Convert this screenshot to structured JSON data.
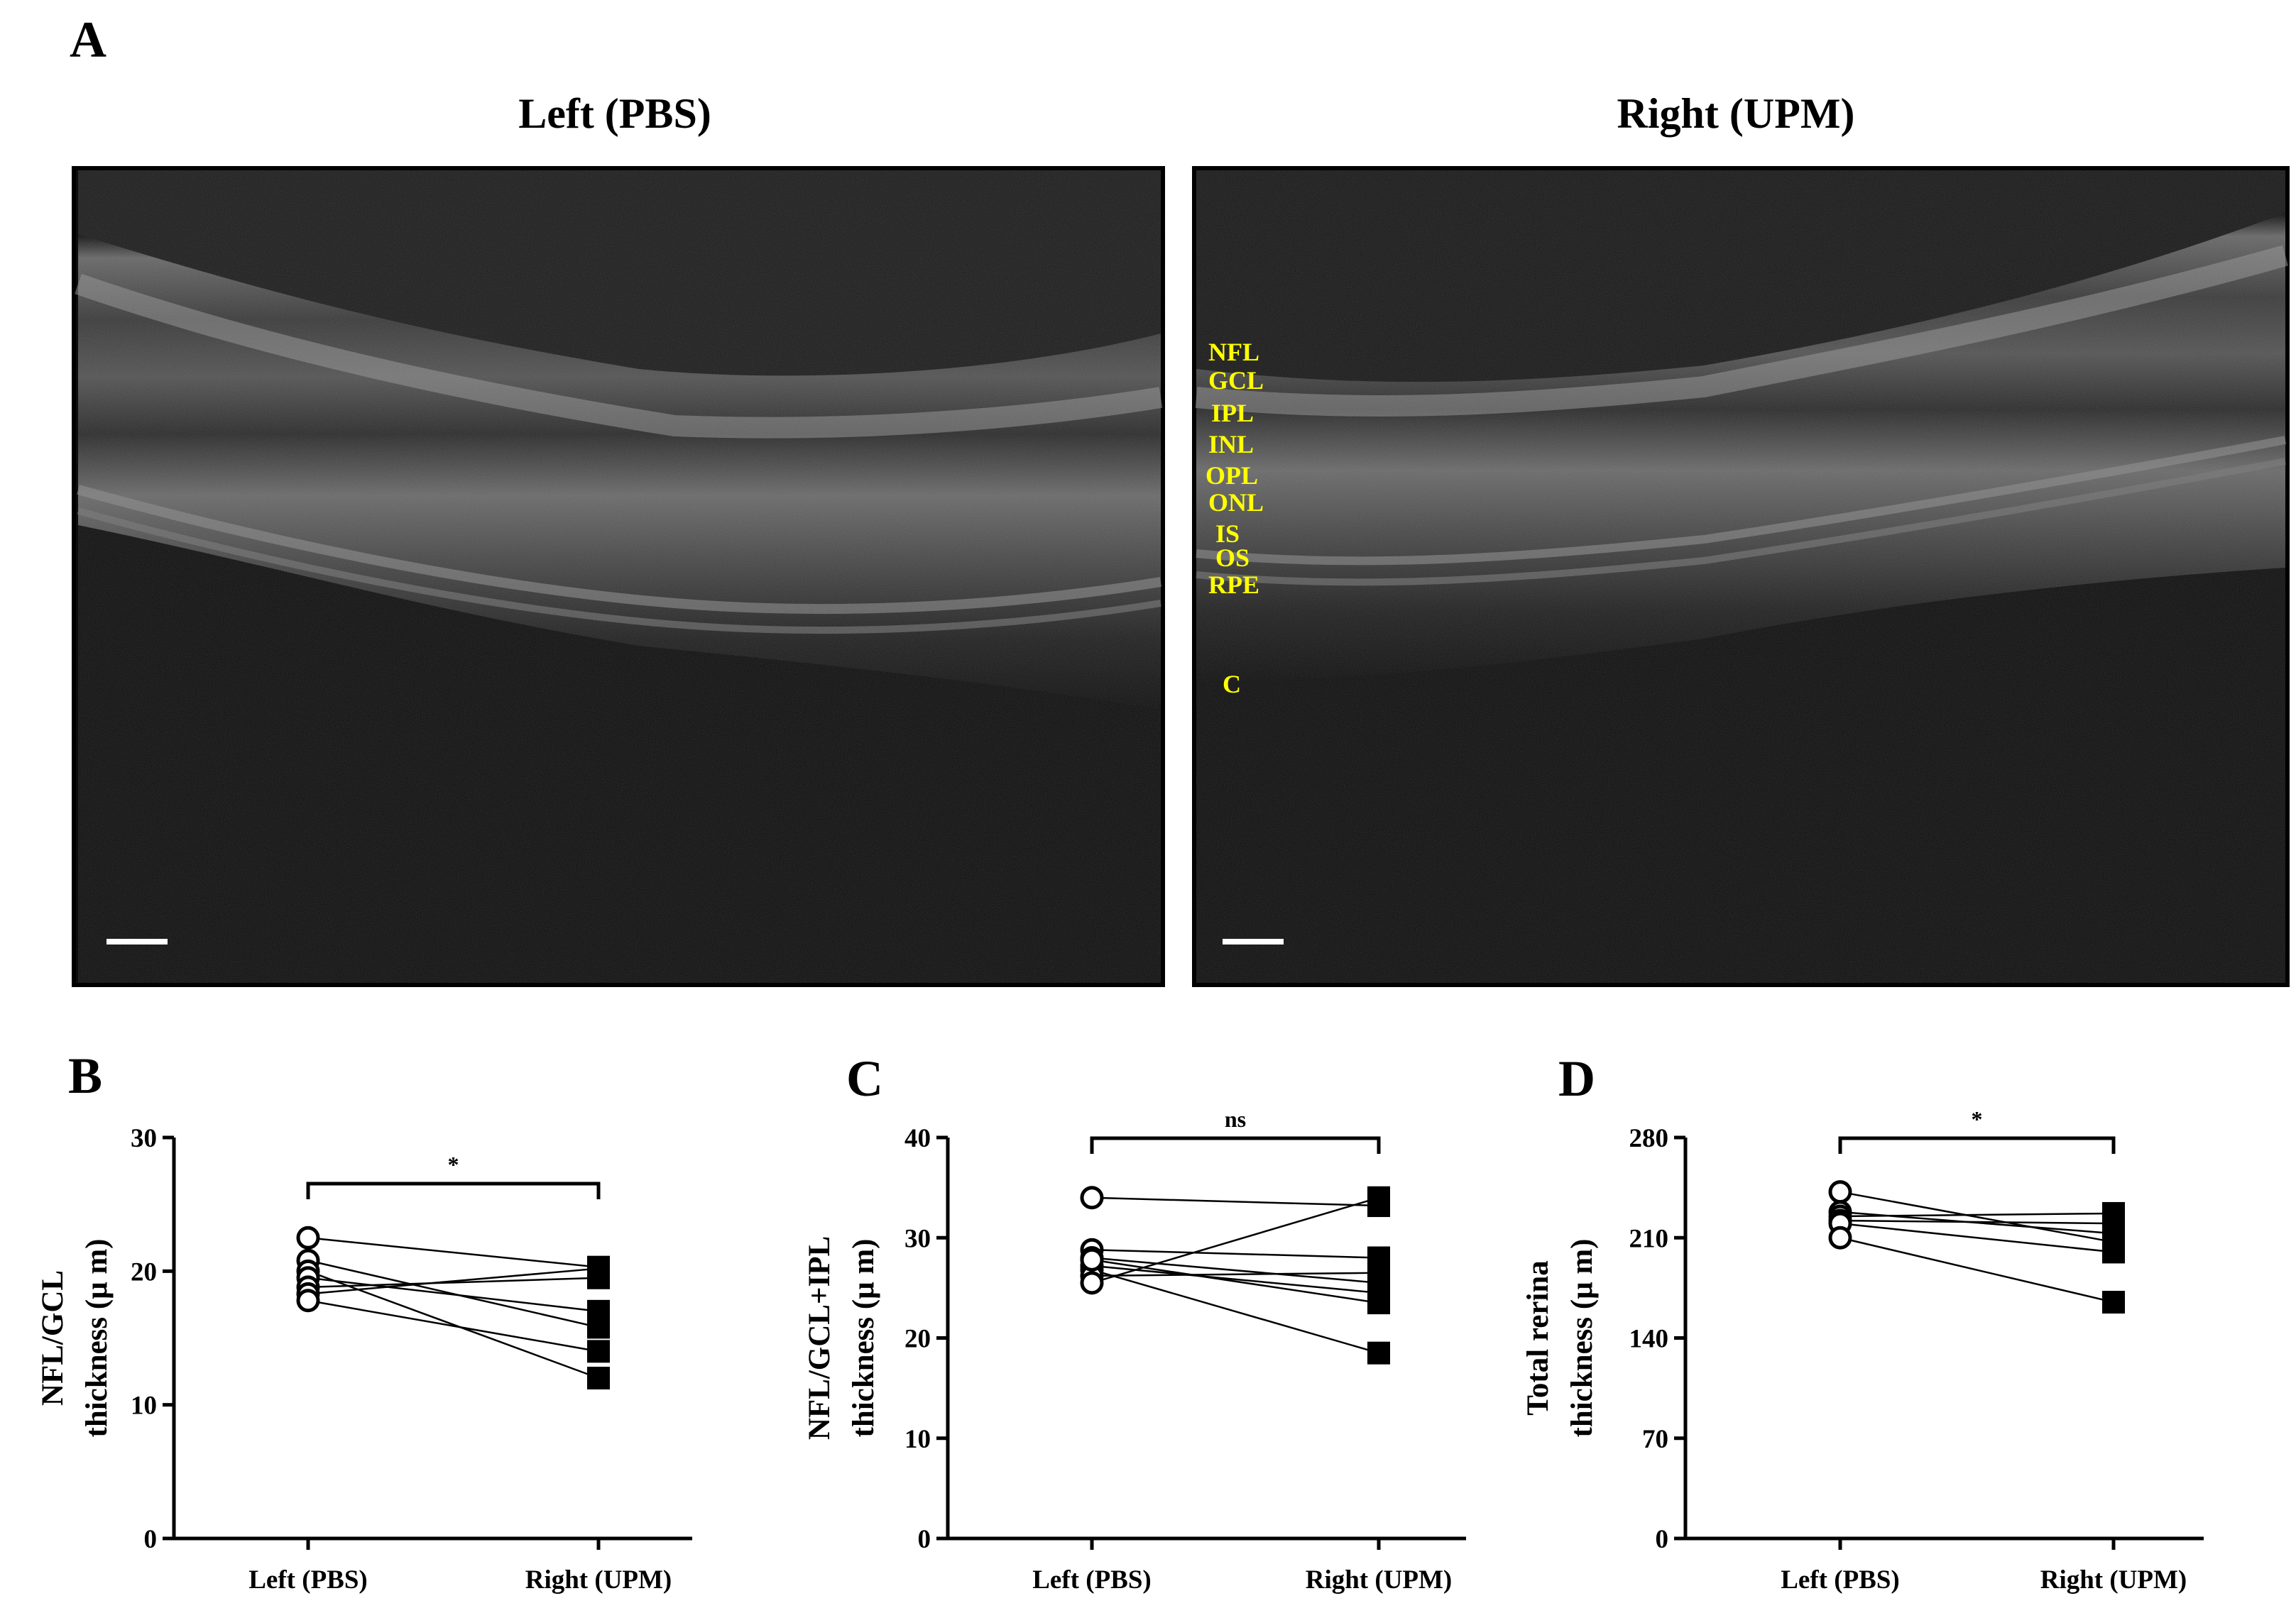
{
  "panels": {
    "A": {
      "letter": "A",
      "left_title": "Left (PBS)",
      "right_title": "Right (UPM)",
      "layer_labels": [
        "NFL",
        "GCL",
        "IPL",
        "INL",
        "OPL",
        "ONL",
        "IS",
        "OS",
        "RPE",
        "C"
      ],
      "label_color": "#ffff00"
    },
    "B": {
      "letter": "B"
    },
    "C": {
      "letter": "C"
    },
    "D": {
      "letter": "D"
    }
  },
  "chart_data": [
    {
      "type": "line",
      "panel": "B",
      "categories": [
        "Left (PBS)",
        "Right (UPM)"
      ],
      "ylabel": [
        "NFL/GCL",
        "thickness (μ m)"
      ],
      "ylim": [
        0,
        30
      ],
      "yticks": [
        0,
        10,
        20,
        30
      ],
      "significance": "*",
      "pairs": [
        [
          22.5,
          20.3
        ],
        [
          20.8,
          15.8
        ],
        [
          20.0,
          12.0
        ],
        [
          19.5,
          17.0
        ],
        [
          18.8,
          19.5
        ],
        [
          18.3,
          20.2
        ],
        [
          17.8,
          14.0
        ]
      ]
    },
    {
      "type": "line",
      "panel": "C",
      "categories": [
        "Left (PBS)",
        "Right (UPM)"
      ],
      "ylabel": [
        "NFL/GCL+IPL",
        "thickness (μ m)"
      ],
      "ylim": [
        0,
        40
      ],
      "yticks": [
        0,
        10,
        20,
        30,
        40
      ],
      "significance": "ns",
      "pairs": [
        [
          34.0,
          33.2
        ],
        [
          28.8,
          28.0
        ],
        [
          28.0,
          25.5
        ],
        [
          27.2,
          24.5
        ],
        [
          26.8,
          18.5
        ],
        [
          26.2,
          26.5
        ],
        [
          25.5,
          34.0
        ],
        [
          27.8,
          23.5
        ]
      ]
    },
    {
      "type": "line",
      "panel": "D",
      "categories": [
        "Left (PBS)",
        "Right (UPM)"
      ],
      "ylabel": [
        "Total rerina",
        "thickness (μ m)"
      ],
      "ylim": [
        0,
        280
      ],
      "yticks": [
        0,
        70,
        140,
        210,
        280
      ],
      "significance": "*",
      "pairs": [
        [
          242,
          207
        ],
        [
          228,
          213
        ],
        [
          225,
          227
        ],
        [
          222,
          220
        ],
        [
          220,
          200
        ],
        [
          210,
          165
        ]
      ]
    }
  ]
}
